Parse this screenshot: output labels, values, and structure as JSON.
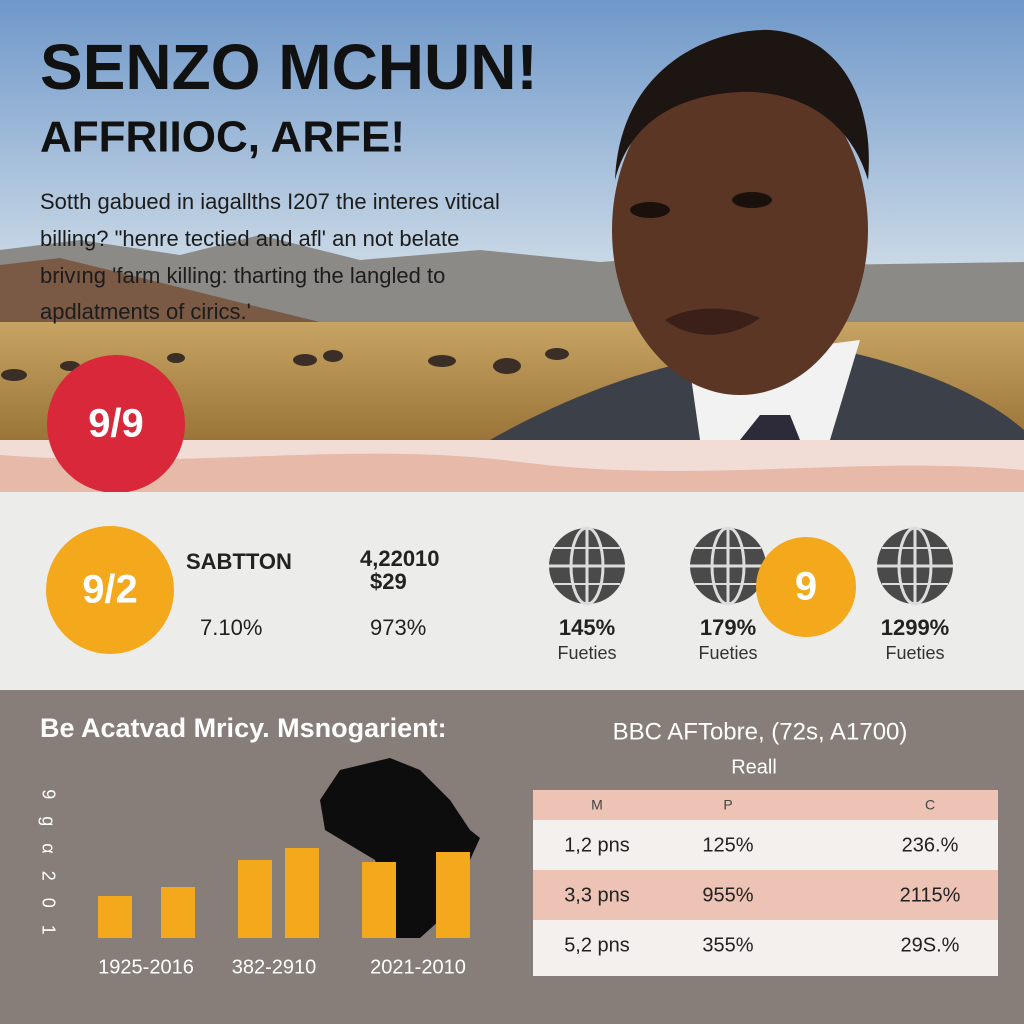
{
  "header": {
    "title": "SENZO MCHUN!",
    "subtitle": "AFFRIIOC, ARFE!",
    "body": [
      "Sotth gabued in iagallths I207 the interes vitical",
      "billing? \"henre tectied and afl' an not belate",
      "brivıng 'farm killing: tharting the langled to",
      "apdlatments of cirics.'"
    ]
  },
  "badge_top": "9/9",
  "stats": {
    "badge": "9/2",
    "label": "SABTTON",
    "label_value": "7.10%",
    "amount": "4,22010",
    "amount_sub": "$29",
    "amount_value": "973%",
    "globes": [
      {
        "value": "145%",
        "label": "Fueties"
      },
      {
        "value": "179%",
        "label": "Fueties"
      },
      {
        "value": "1299%",
        "label": "Fueties"
      }
    ],
    "badge_mid": "9"
  },
  "chart": {
    "title": "Be Acatvad Mricy. Msnogarient:",
    "axis_label": "9 g α 2 0 1",
    "bar_values": [
      42,
      51,
      78,
      90,
      76,
      86
    ],
    "color": "#f4a81c",
    "groups": [
      "1925-2016",
      "382-2910",
      "2021-2010"
    ]
  },
  "table": {
    "title": "BBC AFTobre, (72s, A1700)",
    "subtitle": "Reall",
    "header": [
      "M",
      "P",
      "C"
    ],
    "rows": [
      [
        "1,2 pns",
        "125%",
        "236.%"
      ],
      [
        "3,3 pns",
        "955%",
        "2115%"
      ],
      [
        "5,2 pns",
        "355%",
        "29S.%"
      ]
    ]
  }
}
